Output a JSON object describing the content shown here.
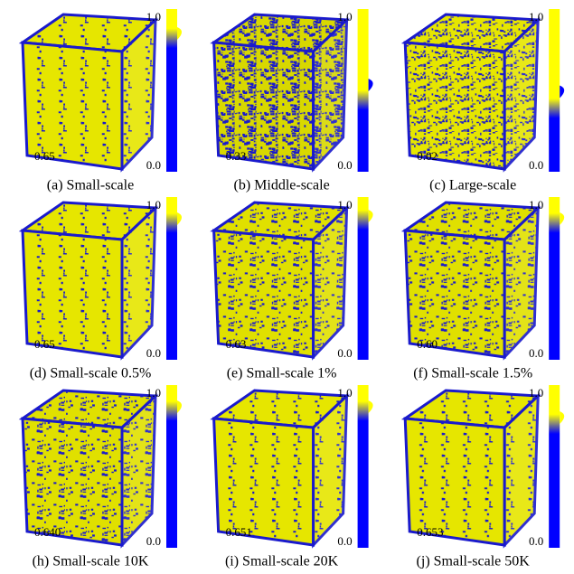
{
  "panels": [
    {
      "caption": "(a) Small-scale",
      "value": "0.65",
      "bar_top": "1.0",
      "bar_bottom": "0.0"
    },
    {
      "caption": "(b) Middle-scale",
      "value": "0.33",
      "bar_top": "1.0",
      "bar_bottom": "0.0"
    },
    {
      "caption": "(c) Large-scale",
      "value": "0.02",
      "bar_top": "1.0",
      "bar_bottom": "0.0"
    },
    {
      "caption": "(d) Small-scale 0.5%",
      "value": "0.65",
      "bar_top": "1.0",
      "bar_bottom": "0.0"
    },
    {
      "caption": "(e) Small-scale 1%",
      "value": "0.63",
      "bar_top": "1.0",
      "bar_bottom": "0.0"
    },
    {
      "caption": "(f) Small-scale 1.5%",
      "value": "0.60",
      "bar_top": "1.0",
      "bar_bottom": "0.0"
    },
    {
      "caption": "(h) Small-scale 10K",
      "value": "0.640",
      "bar_top": "1.0",
      "bar_bottom": "0.0"
    },
    {
      "caption": "(i) Small-scale 20K",
      "value": "0.651",
      "bar_top": "1.0",
      "bar_bottom": "0.0"
    },
    {
      "caption": "(j) Small-scale 50K",
      "value": "0.653",
      "bar_top": "1.0",
      "bar_bottom": "0.0"
    }
  ]
}
